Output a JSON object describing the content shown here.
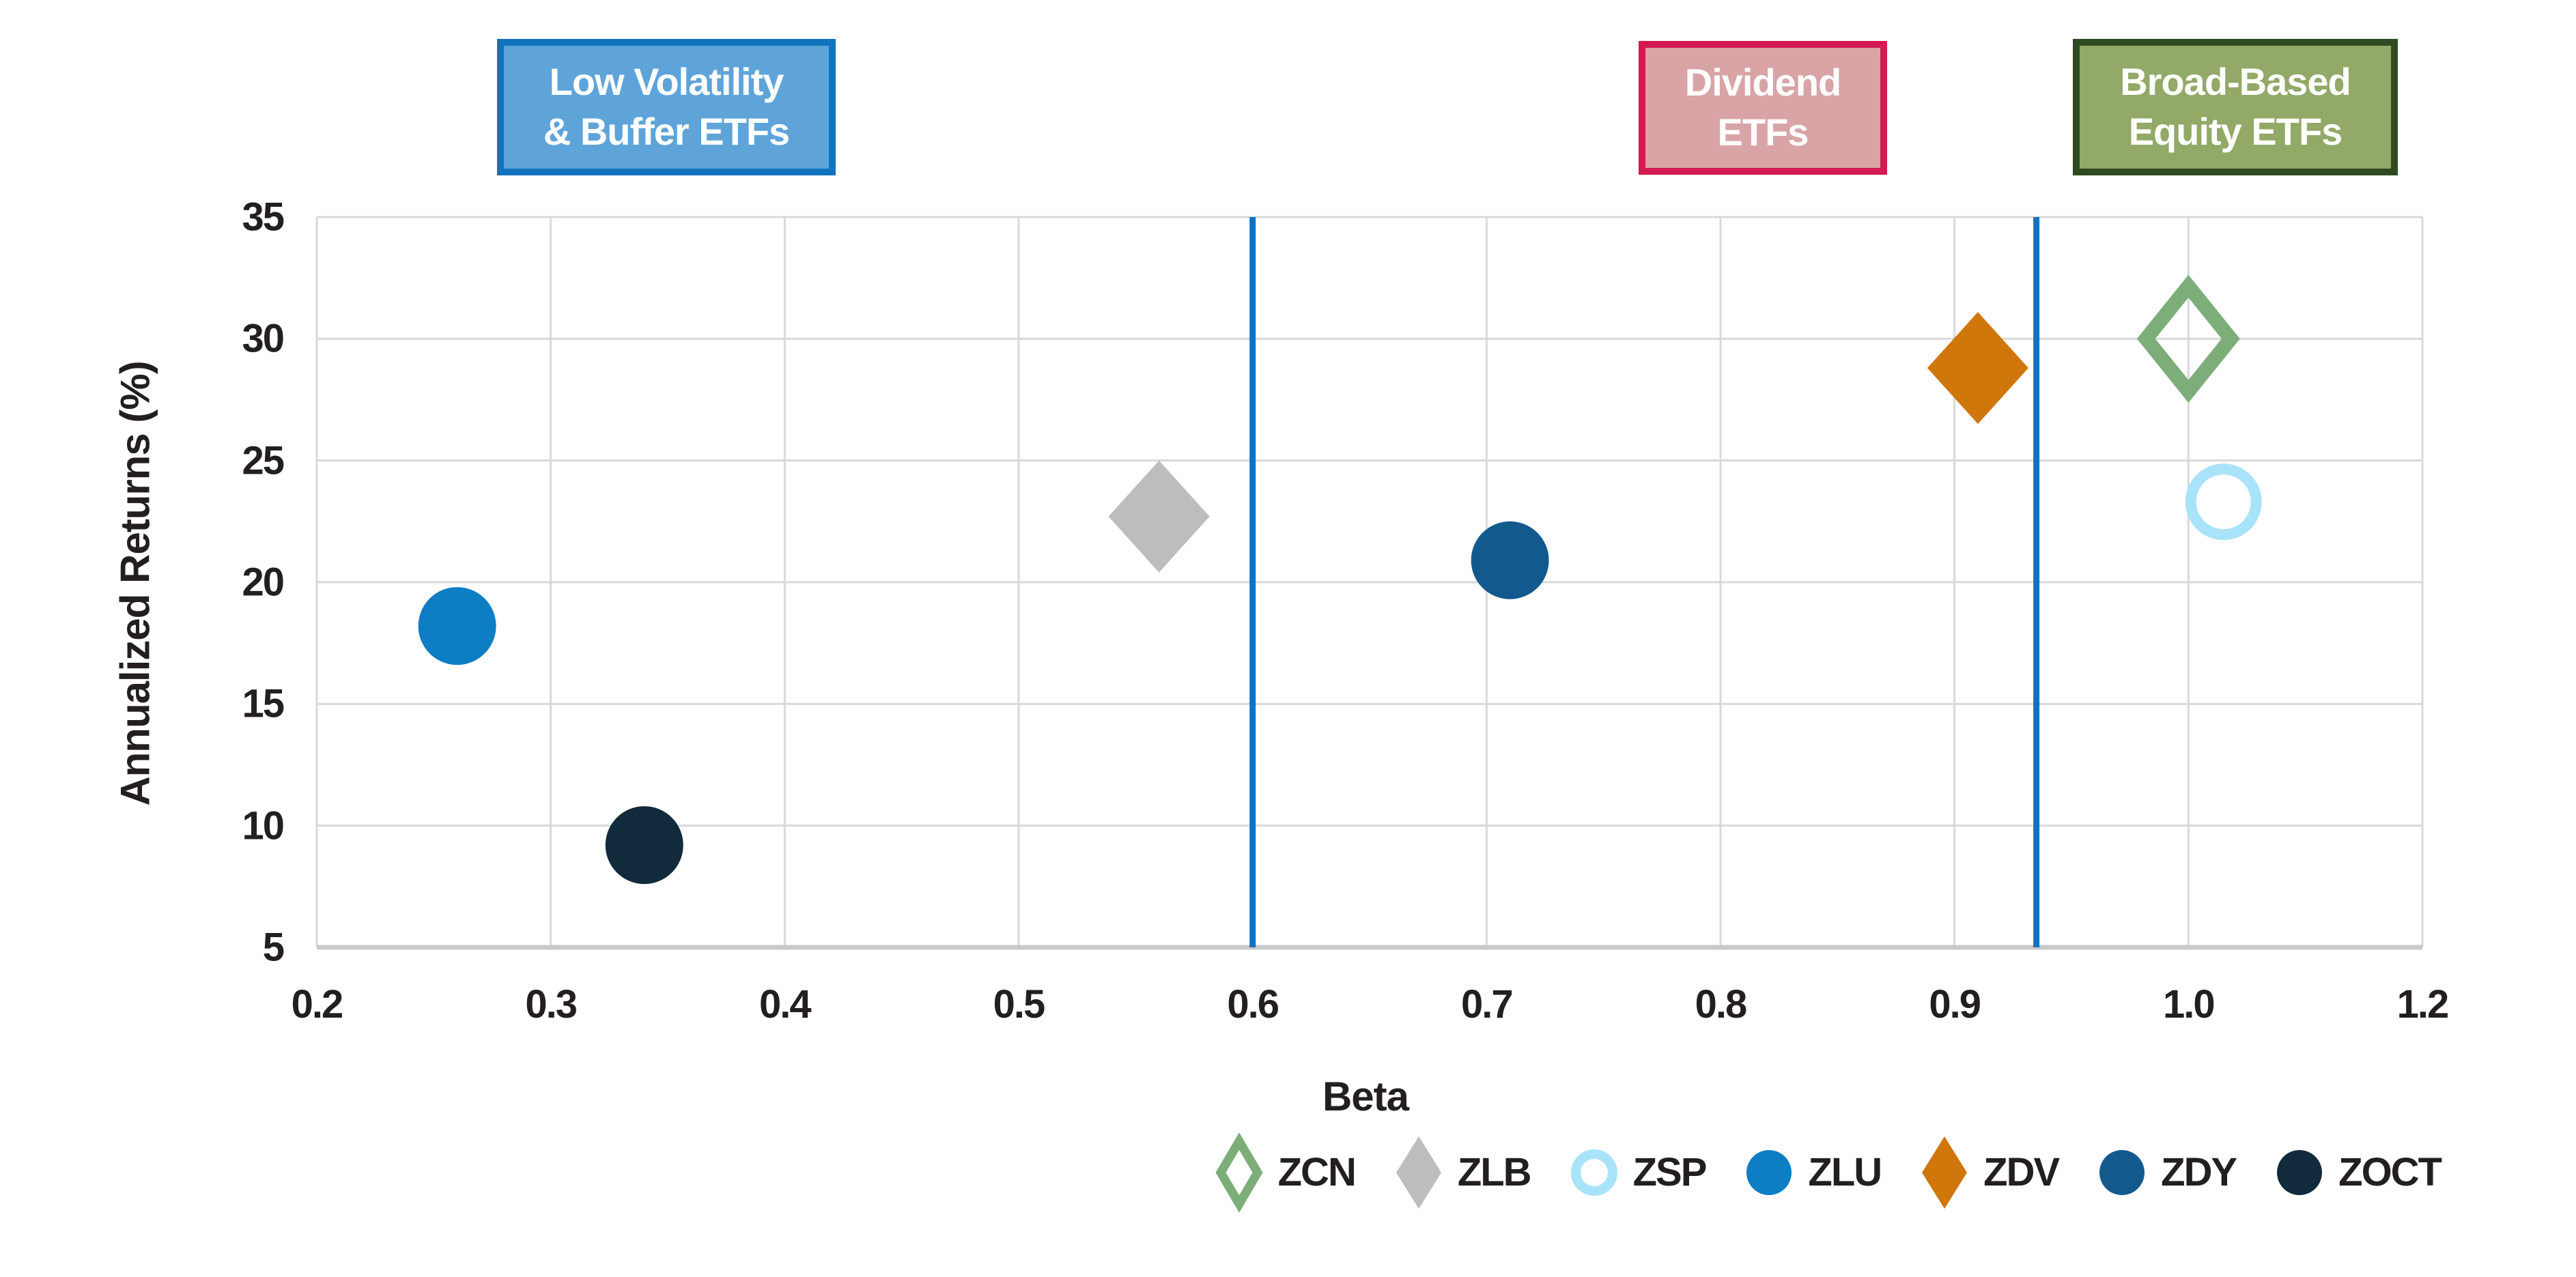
{
  "category_boxes": {
    "low_volatility": {
      "line1": "Low Volatility",
      "line2": "& Buffer ETFs",
      "fill": "#5EA4D9",
      "border": "#1173BC",
      "text_color": "#FFFFFF"
    },
    "dividend": {
      "line1": "Dividend",
      "line2": "ETFs",
      "fill": "#D9A4A6",
      "border": "#D31A52",
      "text_color": "#FFFFFF"
    },
    "broad_based": {
      "line1": "Broad-Based",
      "line2": "Equity ETFs",
      "fill": "#92A967",
      "border": "#2D4A22",
      "text_color": "#FFFFFF"
    }
  },
  "chart_data": {
    "type": "scatter",
    "xlabel": "Beta",
    "ylabel": "Annualized Returns (%)",
    "x_tick_labels": [
      "0.2",
      "0.3",
      "0.4",
      "0.5",
      "0.6",
      "0.7",
      "0.8",
      "0.9",
      "1.0",
      "1.2"
    ],
    "x_tick_values": [
      0.2,
      0.3,
      0.4,
      0.5,
      0.6,
      0.7,
      0.8,
      0.9,
      1.0,
      1.2
    ],
    "y_ticks": [
      35,
      30,
      25,
      20,
      15,
      10,
      5
    ],
    "ylim": [
      5,
      35
    ],
    "grid": true,
    "gridline_color": "#D9D9D9",
    "axisline_color": "#C9C9C9",
    "text_color": "#231F20",
    "divider_color": "#1272BC",
    "dividers_beta": [
      0.6,
      0.935
    ],
    "legend_position": "bottom-right",
    "series": [
      {
        "name": "ZCN",
        "beta": 1.0,
        "annualized_return_pct": 30.0,
        "marker": "diamond-outline",
        "color": "#7DAE79"
      },
      {
        "name": "ZLB",
        "beta": 0.56,
        "annualized_return_pct": 22.7,
        "marker": "diamond",
        "color": "#BDBDBF"
      },
      {
        "name": "ZSP",
        "beta": 1.03,
        "annualized_return_pct": 23.3,
        "marker": "circle-outline",
        "color": "#A8E3FA"
      },
      {
        "name": "ZLU",
        "beta": 0.26,
        "annualized_return_pct": 18.2,
        "marker": "circle",
        "color": "#0E7EC4"
      },
      {
        "name": "ZDV",
        "beta": 0.91,
        "annualized_return_pct": 28.8,
        "marker": "diamond",
        "color": "#D0770B"
      },
      {
        "name": "ZDY",
        "beta": 0.71,
        "annualized_return_pct": 20.9,
        "marker": "circle",
        "color": "#125A8E"
      },
      {
        "name": "ZOCT",
        "beta": 0.34,
        "annualized_return_pct": 9.2,
        "marker": "circle",
        "color": "#112B3C"
      }
    ]
  }
}
